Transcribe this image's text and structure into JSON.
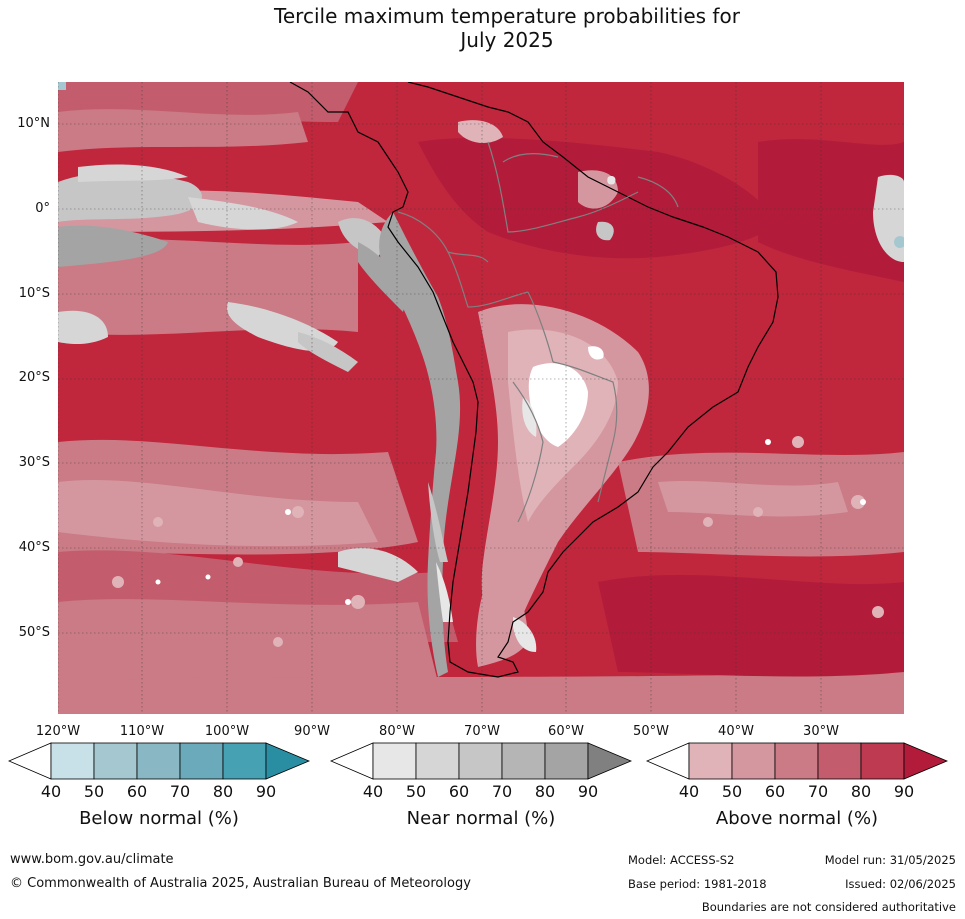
{
  "title": {
    "line1": "Tercile maximum temperature probabilities for",
    "line2": "July 2025"
  },
  "map": {
    "region": "South America",
    "lat_labels": [
      "10°N",
      "0°",
      "10°S",
      "20°S",
      "30°S",
      "40°S",
      "50°S"
    ],
    "lon_labels": [
      "120°W",
      "110°W",
      "100°W",
      "90°W",
      "80°W",
      "70°W",
      "60°W",
      "50°W",
      "40°W",
      "30°W"
    ],
    "colors": {
      "ocean_dominant": "#c0263c",
      "land_outline": "#000000",
      "country_border": "#808080"
    }
  },
  "colorbars": [
    {
      "title": "Below normal (%)",
      "ticks": [
        "40",
        "50",
        "60",
        "70",
        "80",
        "90"
      ],
      "colors": [
        "#ffffff",
        "#c8e1e8",
        "#a5c8d0",
        "#89b7c3",
        "#6aaabb",
        "#46a2b3",
        "#2a8ea3"
      ]
    },
    {
      "title": "Near normal (%)",
      "ticks": [
        "40",
        "50",
        "60",
        "70",
        "80",
        "90"
      ],
      "colors": [
        "#ffffff",
        "#e7e7e7",
        "#d6d6d6",
        "#c6c6c6",
        "#b5b5b5",
        "#a4a4a4",
        "#808080"
      ]
    },
    {
      "title": "Above normal (%)",
      "ticks": [
        "40",
        "50",
        "60",
        "70",
        "80",
        "90"
      ],
      "colors": [
        "#ffffff",
        "#e0b3b8",
        "#d5979f",
        "#ca7b85",
        "#c35d6d",
        "#bd3a50",
        "#b21c3a"
      ]
    }
  ],
  "footer": {
    "website": "www.bom.gov.au/climate",
    "copyright": "© Commonwealth of Australia 2025, Australian Bureau of Meteorology",
    "model": "Model: ACCESS-S2",
    "model_run": "Model run: 31/05/2025",
    "base_period": "Base period: 1981-2018",
    "issued": "Issued: 02/06/2025",
    "disclaimer": "Boundaries are not considered authoritative"
  }
}
